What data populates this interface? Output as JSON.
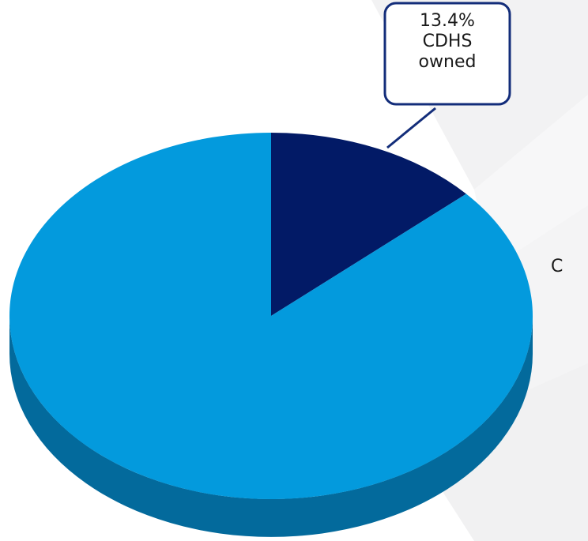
{
  "colors": {
    "slice_light": "#039ADD",
    "slice_light_side": "#036A9C",
    "slice_dark": "#021A66",
    "callout_border": "#132D7A"
  },
  "callout": {
    "line1": "13.4%",
    "line2": "CDHS",
    "line3": "owned"
  },
  "side_label": "C",
  "chart_data": {
    "type": "pie",
    "style": "3d",
    "slices": [
      {
        "label": "CDHS owned",
        "value": 13.4,
        "color": "#021A66"
      },
      {
        "label": "",
        "value": 86.6,
        "color": "#039ADD"
      }
    ],
    "annotations": [
      "13.4% CDHS owned"
    ],
    "legend": "none"
  }
}
